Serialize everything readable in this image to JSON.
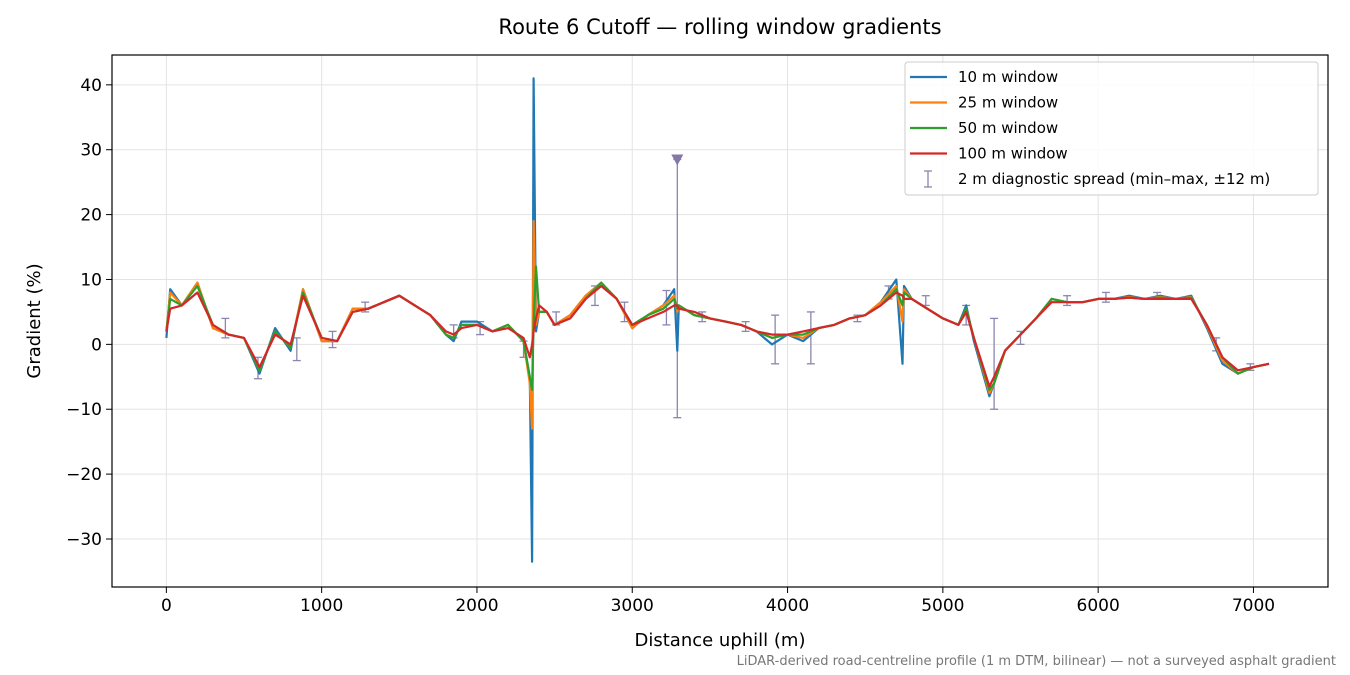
{
  "chart_data": {
    "type": "line",
    "title": "Route 6 Cutoff — rolling window gradients",
    "x_label": "Distance uphill (m)",
    "y_label": "Gradient (%)",
    "footnote": "LiDAR-derived road-centreline profile (1 m DTM, bilinear) — not a surveyed asphalt gradient",
    "xlim": [
      -350,
      7480
    ],
    "ylim": [
      -37.4,
      44.6
    ],
    "xticks": [
      0,
      1000,
      2000,
      3000,
      4000,
      5000,
      6000,
      7000
    ],
    "yticks": [
      {
        "value": -30,
        "label": "−30"
      },
      {
        "value": -20,
        "label": "−20"
      },
      {
        "value": -10,
        "label": "−10"
      },
      0,
      10,
      20,
      30,
      40
    ],
    "grid": true,
    "legend": "upper right",
    "x": [
      0,
      25,
      100,
      200,
      300,
      400,
      500,
      600,
      700,
      800,
      880,
      1000,
      1100,
      1200,
      1300,
      1400,
      1500,
      1600,
      1700,
      1800,
      1850,
      1900,
      2000,
      2100,
      2200,
      2300,
      2340,
      2355,
      2365,
      2380,
      2400,
      2450,
      2500,
      2600,
      2700,
      2800,
      2900,
      3000,
      3100,
      3200,
      3270,
      3290,
      3300,
      3400,
      3500,
      3600,
      3700,
      3800,
      3900,
      4000,
      4100,
      4200,
      4300,
      4400,
      4500,
      4600,
      4700,
      4740,
      4750,
      4800,
      4900,
      5000,
      5100,
      5150,
      5200,
      5300,
      5330,
      5400,
      5500,
      5600,
      5700,
      5800,
      5900,
      6000,
      6100,
      6200,
      6300,
      6400,
      6500,
      6600,
      6700,
      6800,
      6900,
      7000,
      7100
    ],
    "series": [
      {
        "name": "10 m window",
        "color": "#1f77b4",
        "values": [
          1,
          8.5,
          6,
          9.5,
          2.5,
          1.5,
          1,
          -4.5,
          2.5,
          -1,
          8.5,
          0.5,
          0.5,
          5.5,
          5.5,
          6.5,
          7.5,
          6,
          4.5,
          1.5,
          0.5,
          3.5,
          3.5,
          2,
          3,
          0.5,
          -5,
          -33.5,
          41,
          2,
          5,
          5,
          3,
          4.5,
          7.5,
          9.5,
          7,
          2.5,
          4.5,
          6,
          8.5,
          -1,
          6,
          4.5,
          4,
          3.5,
          3,
          2,
          0,
          1.5,
          0.5,
          2.5,
          3,
          4,
          4.5,
          6.5,
          10,
          -3,
          9,
          7,
          5.5,
          4,
          3,
          6,
          0.5,
          -8,
          -6,
          -1,
          1.5,
          4,
          7,
          6.5,
          6.5,
          7,
          7,
          7.5,
          7,
          7.5,
          7,
          7.5,
          2.5,
          -3,
          -4.5,
          -3.5,
          -3
        ]
      },
      {
        "name": "25 m window",
        "color": "#ff7f0e",
        "values": [
          2,
          8,
          6,
          9.5,
          2.5,
          1.5,
          1,
          -4,
          2,
          -0.5,
          8.5,
          0.5,
          0.5,
          5.5,
          5.5,
          6.5,
          7.5,
          6,
          4.5,
          1.5,
          1,
          3,
          3,
          2,
          3,
          0.5,
          -6,
          -13,
          19,
          3,
          5,
          5,
          3,
          4.5,
          7.5,
          9.5,
          7,
          2.5,
          4.5,
          6,
          7.5,
          5,
          6,
          4.5,
          4,
          3.5,
          3,
          2,
          1,
          1.5,
          1,
          2.5,
          3,
          4,
          4.5,
          6.5,
          9,
          3.5,
          8.5,
          7,
          5.5,
          4,
          3,
          5.5,
          1,
          -7.5,
          -6,
          -1,
          1.5,
          4,
          7,
          6.5,
          6.5,
          7,
          7,
          7.3,
          7,
          7.3,
          7,
          7.3,
          2.8,
          -2.5,
          -4.5,
          -3.5,
          -3
        ]
      },
      {
        "name": "50 m window",
        "color": "#2ca02c",
        "values": [
          2,
          7,
          6,
          9,
          3,
          1.5,
          1,
          -4,
          2,
          -0.5,
          8,
          1,
          0.5,
          5,
          5.5,
          6.5,
          7.5,
          6,
          4.5,
          1.5,
          1,
          3,
          3,
          2,
          3,
          0.5,
          -5,
          -7,
          3,
          12,
          5,
          5,
          3,
          4,
          7,
          9.5,
          7,
          3,
          4.5,
          5.5,
          7,
          5.5,
          6,
          4.5,
          4,
          3.5,
          3,
          2,
          1,
          1.5,
          1.5,
          2.5,
          3,
          4,
          4.5,
          6,
          8.5,
          6,
          8,
          7,
          5.5,
          4,
          3,
          5.5,
          1,
          -7,
          -6,
          -1,
          1.5,
          4,
          7,
          6.5,
          6.5,
          7,
          7,
          7.2,
          7,
          7.2,
          7,
          7.2,
          3,
          -2,
          -4.5,
          -3.5,
          -3
        ]
      },
      {
        "name": "100 m window",
        "color": "#d62728",
        "values": [
          2,
          5.5,
          6,
          8,
          3,
          1.5,
          1,
          -3.5,
          1.5,
          0,
          7.5,
          1,
          0.5,
          5,
          5.5,
          6.5,
          7.5,
          6,
          4.5,
          2,
          1.5,
          2.5,
          3,
          2,
          2.5,
          1,
          -2,
          0,
          2,
          4,
          6,
          5,
          3,
          4,
          7,
          9,
          7,
          3,
          4,
          5,
          6,
          6,
          5.5,
          5,
          4,
          3.5,
          3,
          2,
          1.5,
          1.5,
          2,
          2.5,
          3,
          4,
          4.5,
          6,
          8,
          7.5,
          7,
          7,
          5.5,
          4,
          3,
          5,
          1,
          -6.5,
          -5,
          -1,
          1.5,
          4,
          6.5,
          6.5,
          6.5,
          7,
          7,
          7.2,
          7,
          7,
          7,
          7,
          3,
          -2,
          -4,
          -3.5,
          -3
        ]
      }
    ],
    "errorbars": {
      "name": "2 m diagnostic spread (min–max, ±12 m)",
      "color": "#8a86b0",
      "x": [
        380,
        590,
        840,
        1070,
        1280,
        1850,
        2020,
        2300,
        2510,
        2760,
        2950,
        3220,
        3290,
        3450,
        3730,
        3920,
        4150,
        4450,
        4650,
        4890,
        5150,
        5330,
        5500,
        5800,
        6050,
        6380,
        6760,
        6980
      ],
      "low": [
        1,
        -5.3,
        -2.5,
        -0.5,
        5,
        1,
        1.5,
        -2,
        3,
        6,
        3.5,
        3,
        -11.3,
        3.5,
        2,
        -3,
        -3,
        3.5,
        7,
        6,
        3,
        -10,
        0,
        6,
        6.5,
        7,
        -1,
        -4
      ],
      "high": [
        4,
        -2,
        1,
        2,
        6.5,
        3,
        3.5,
        0.5,
        5,
        9,
        6.5,
        8.3,
        28.5,
        5,
        3.5,
        4.5,
        5,
        4.5,
        9,
        7.5,
        6,
        4,
        2,
        7.5,
        8,
        8,
        1,
        -3
      ]
    },
    "flag": {
      "x": 3290,
      "y": 28.5,
      "color": "#8478a8"
    }
  }
}
